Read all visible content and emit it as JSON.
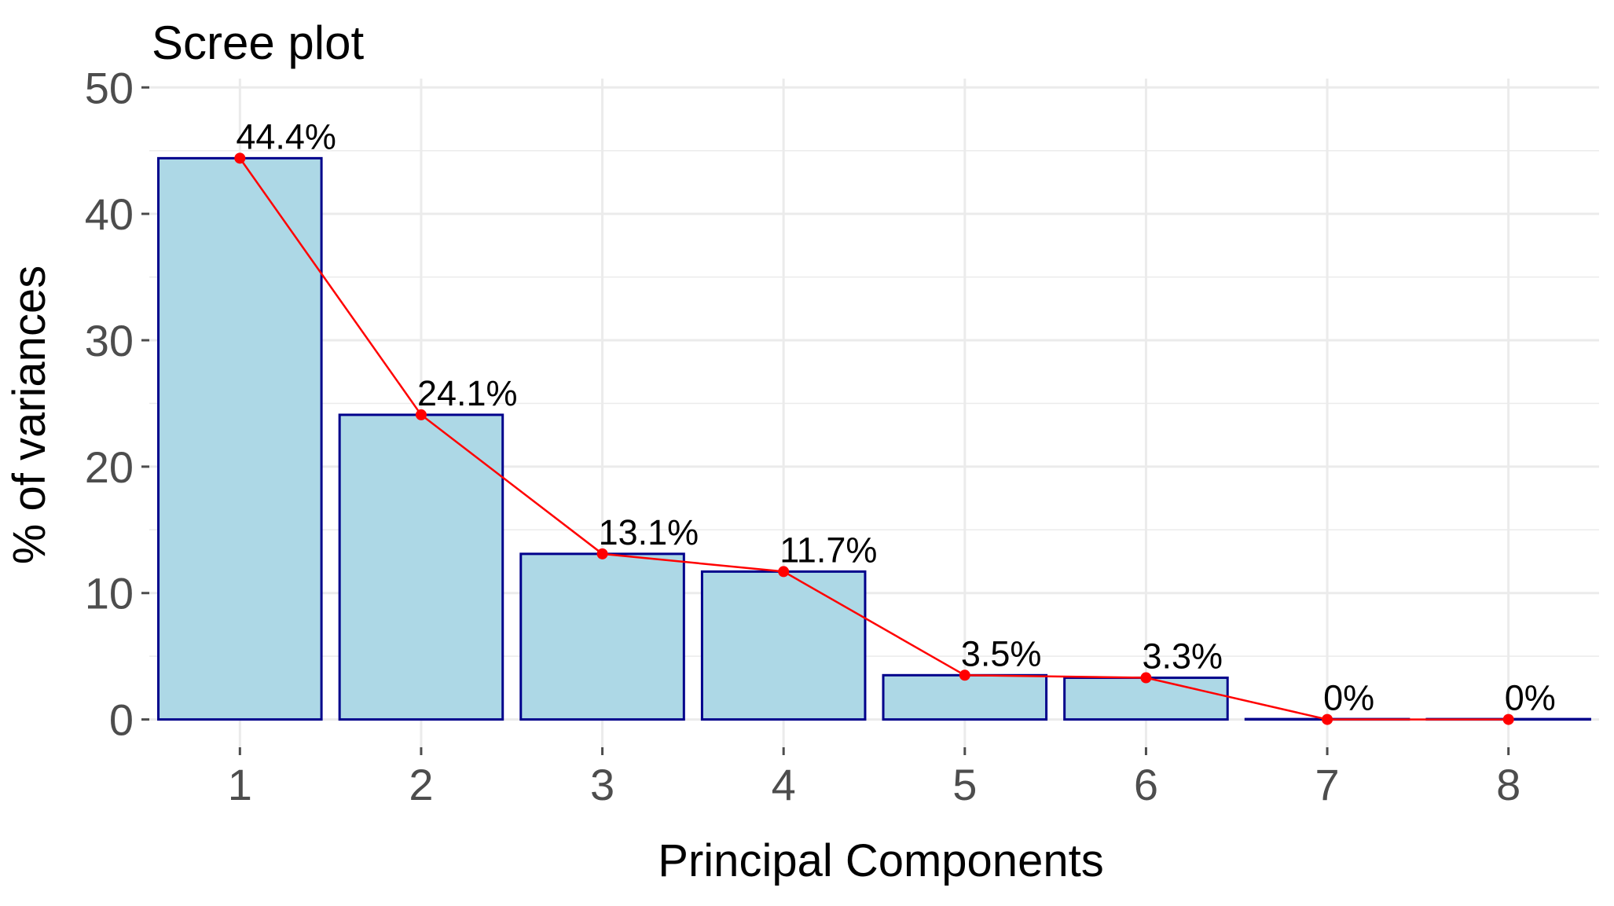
{
  "chart_data": {
    "type": "bar",
    "title": "Scree plot",
    "xlabel": "Principal Components",
    "ylabel": "% of variances",
    "categories": [
      "1",
      "2",
      "3",
      "4",
      "5",
      "6",
      "7",
      "8"
    ],
    "values": [
      44.4,
      24.1,
      13.1,
      11.7,
      3.5,
      3.3,
      0,
      0
    ],
    "data_labels": [
      "44.4%",
      "24.1%",
      "13.1%",
      "11.7%",
      "3.5%",
      "3.3%",
      "0%",
      "0%"
    ],
    "line_overlay": true,
    "ylim": [
      -2.2,
      50.7
    ],
    "yticks": [
      0,
      10,
      20,
      30,
      40,
      50
    ],
    "ytick_labels": [
      "0",
      "10",
      "20",
      "30",
      "40",
      "50"
    ],
    "grid": true,
    "colors": {
      "bar_fill": "#add8e6",
      "bar_stroke": "#00008b",
      "line": "#ff0000",
      "point": "#ff0000",
      "grid": "#ebebeb",
      "tick": "#4d4d4d"
    }
  }
}
